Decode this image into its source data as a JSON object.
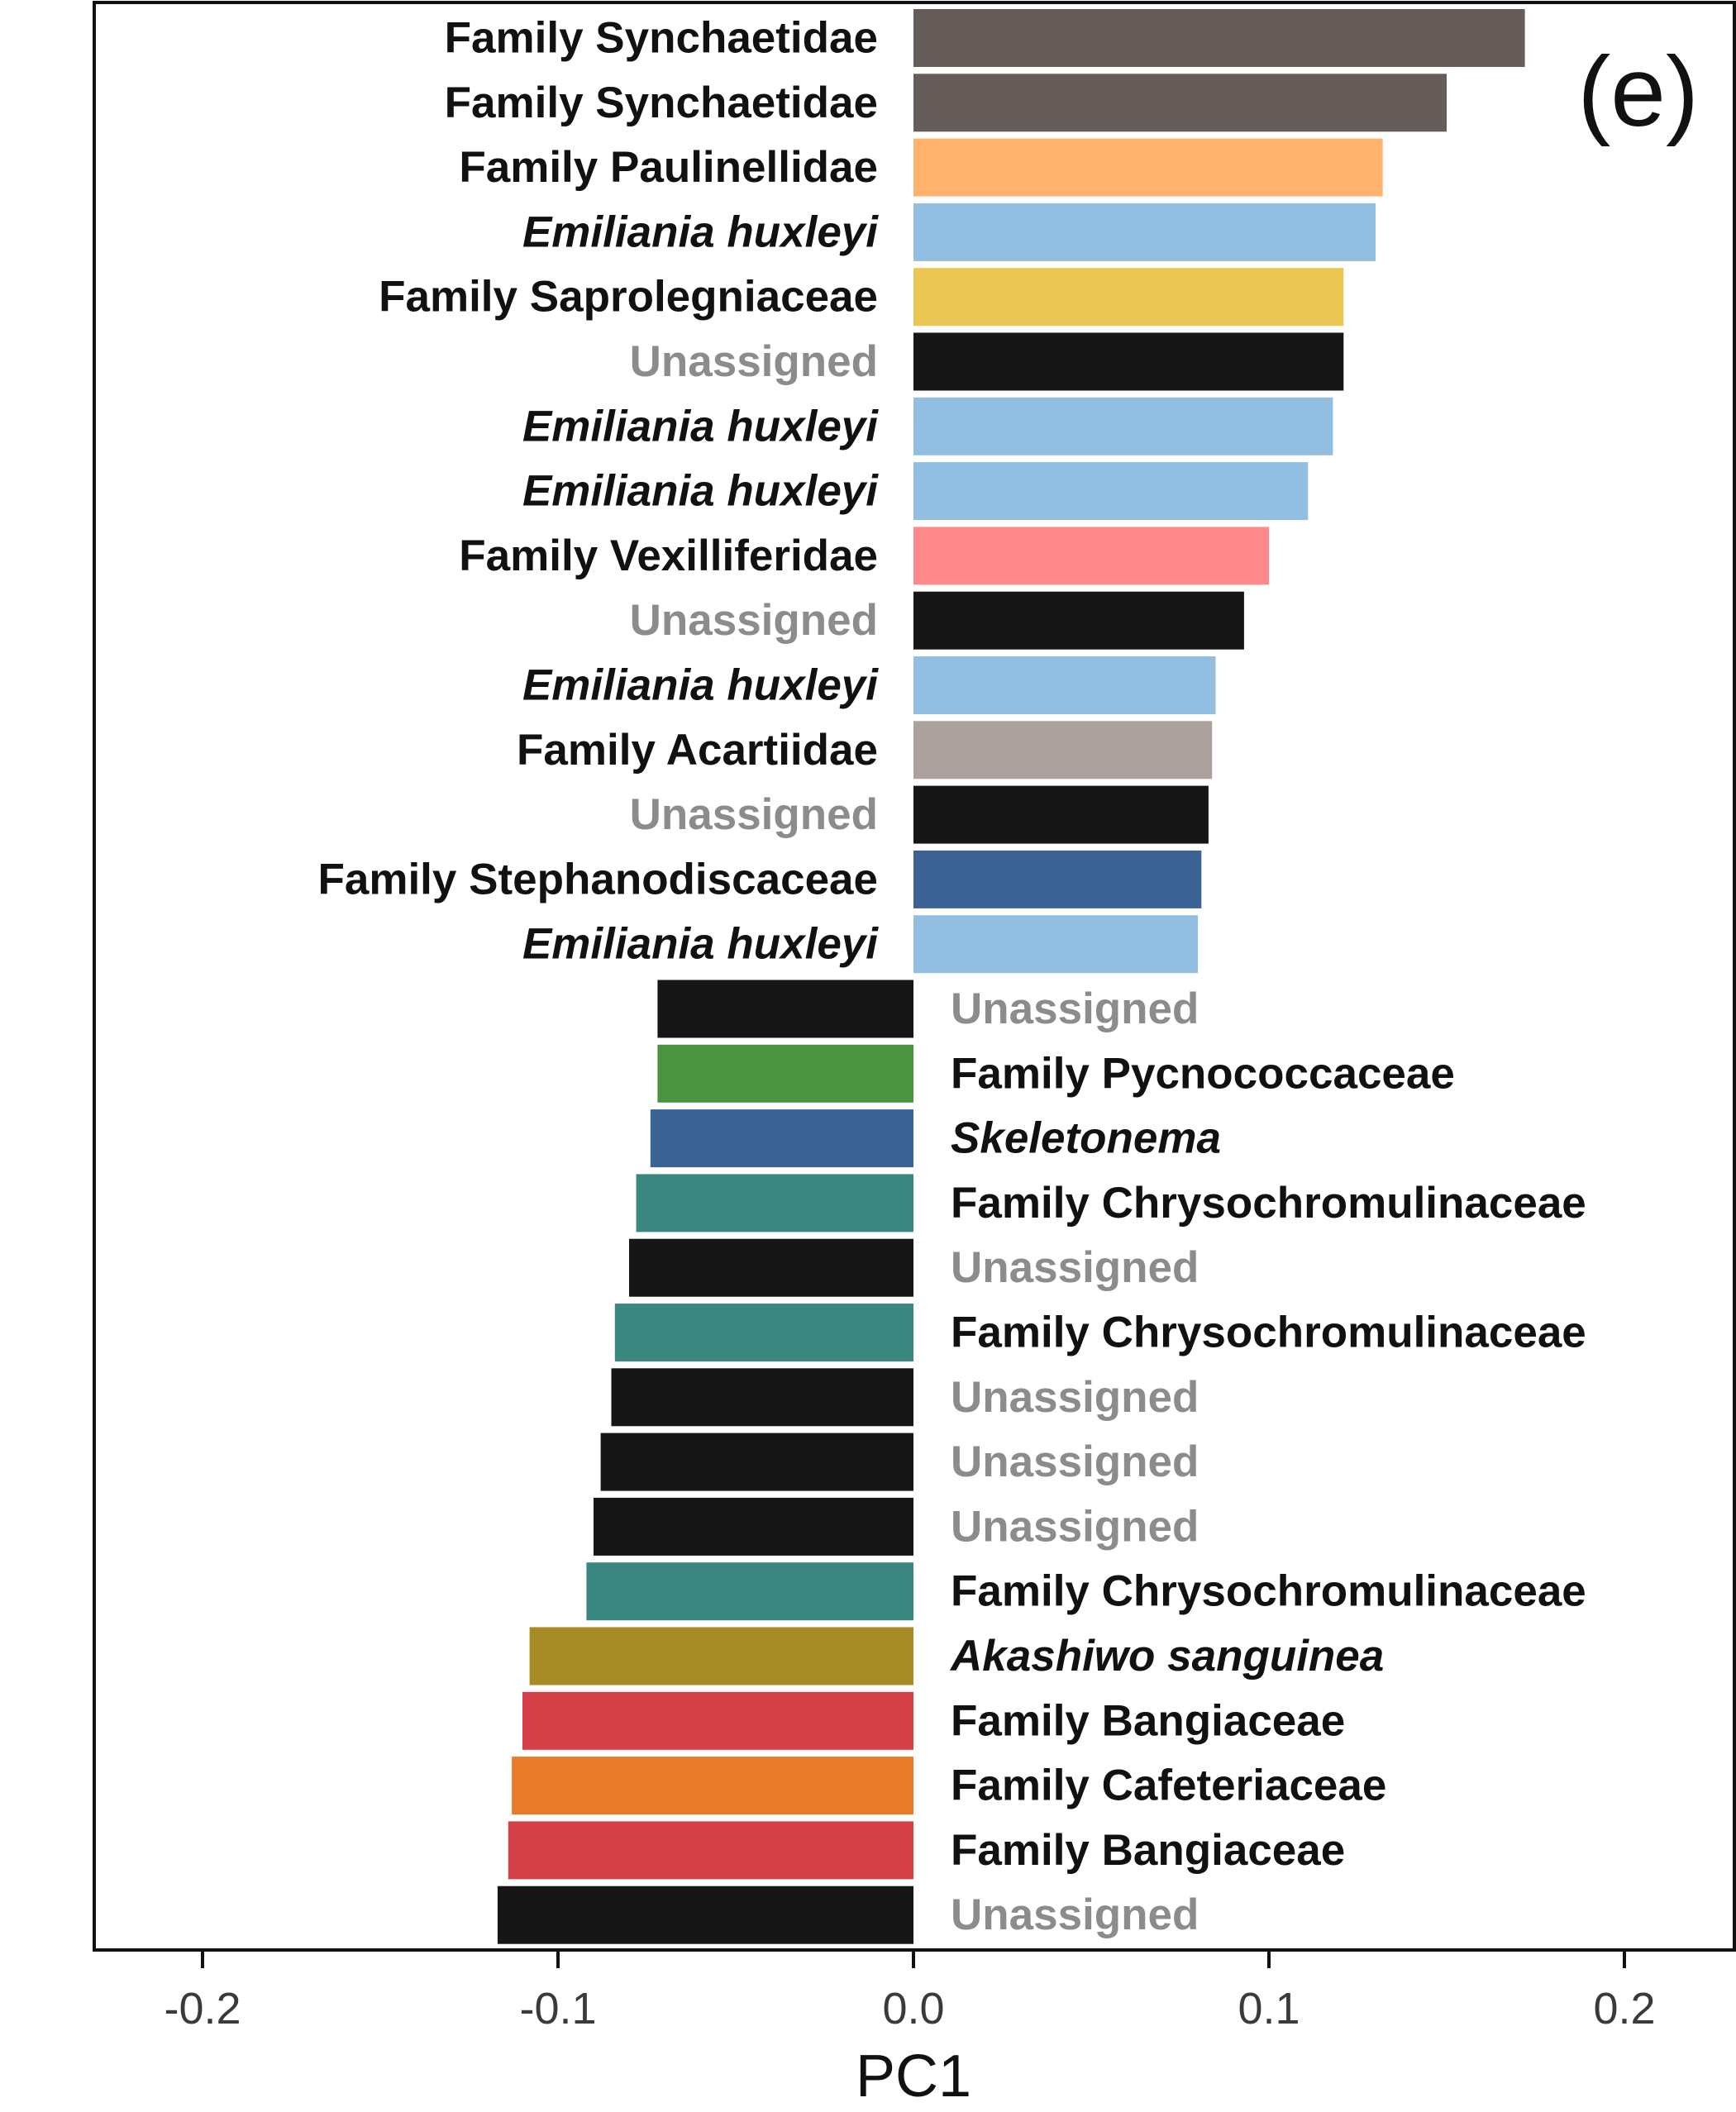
{
  "chart_data": {
    "type": "bar",
    "orientation": "horizontal",
    "panel_label": "(e)",
    "xlabel": "PC1",
    "ylabel": "",
    "xlim": [
      -0.23,
      0.23
    ],
    "xticks": [
      -0.2,
      -0.1,
      0.0,
      0.1,
      0.2
    ],
    "xtick_labels": [
      "-0.2",
      "-0.1",
      "0.0",
      "0.1",
      "0.2"
    ],
    "grid": false,
    "legend": "none",
    "categories": [
      "Family Synchaetidae",
      "Family Synchaetidae",
      "Family Paulinellidae",
      "Emiliania huxleyi",
      "Family Saprolegniaceae",
      "Unassigned",
      "Emiliania huxleyi",
      "Emiliania huxleyi",
      "Family Vexilliferidae",
      "Unassigned",
      "Emiliania huxleyi",
      "Family Acartiidae",
      "Unassigned",
      "Family Stephanodiscaceae",
      "Emiliania huxleyi",
      "Unassigned",
      "Family Pycnococcaceae",
      "Skeletonema",
      "Family Chrysochromulinaceae",
      "Unassigned",
      "Family Chrysochromulinaceae",
      "Unassigned",
      "Unassigned",
      "Unassigned",
      "Family Chrysochromulinaceae",
      "Akashiwo sanguinea",
      "Family Bangiaceae",
      "Family Cafeteriaceae",
      "Family Bangiaceae",
      "Unassigned"
    ],
    "values": [
      0.172,
      0.15,
      0.132,
      0.13,
      0.121,
      0.121,
      0.118,
      0.111,
      0.1,
      0.093,
      0.085,
      0.084,
      0.083,
      0.081,
      0.08,
      -0.072,
      -0.072,
      -0.074,
      -0.078,
      -0.08,
      -0.084,
      -0.085,
      -0.088,
      -0.09,
      -0.092,
      -0.108,
      -0.11,
      -0.113,
      -0.114,
      -0.117
    ],
    "colors": [
      "#665c5a",
      "#665c5a",
      "#ffb26b",
      "#92bfe1",
      "#ebc652",
      "#161616",
      "#92bfe1",
      "#92bfe1",
      "#ff8a89",
      "#161616",
      "#92bfe1",
      "#aca19c",
      "#161616",
      "#3d6396",
      "#92bfe1",
      "#161616",
      "#4a9440",
      "#3d6396",
      "#3a8780",
      "#161616",
      "#3a8780",
      "#161616",
      "#161616",
      "#161616",
      "#3a8780",
      "#a68a26",
      "#d64149",
      "#e97a27",
      "#d64149",
      "#161616"
    ],
    "label_styles": [
      "normal",
      "normal",
      "normal",
      "italic",
      "normal",
      "unassigned",
      "italic",
      "italic",
      "normal",
      "unassigned",
      "italic",
      "normal",
      "unassigned",
      "normal",
      "italic",
      "unassigned",
      "normal",
      "italic",
      "normal",
      "unassigned",
      "normal",
      "unassigned",
      "unassigned",
      "unassigned",
      "normal",
      "italic",
      "normal",
      "normal",
      "normal",
      "unassigned"
    ],
    "label_colors": {
      "normal": "#111111",
      "unassigned": "#8c8c8c"
    }
  }
}
